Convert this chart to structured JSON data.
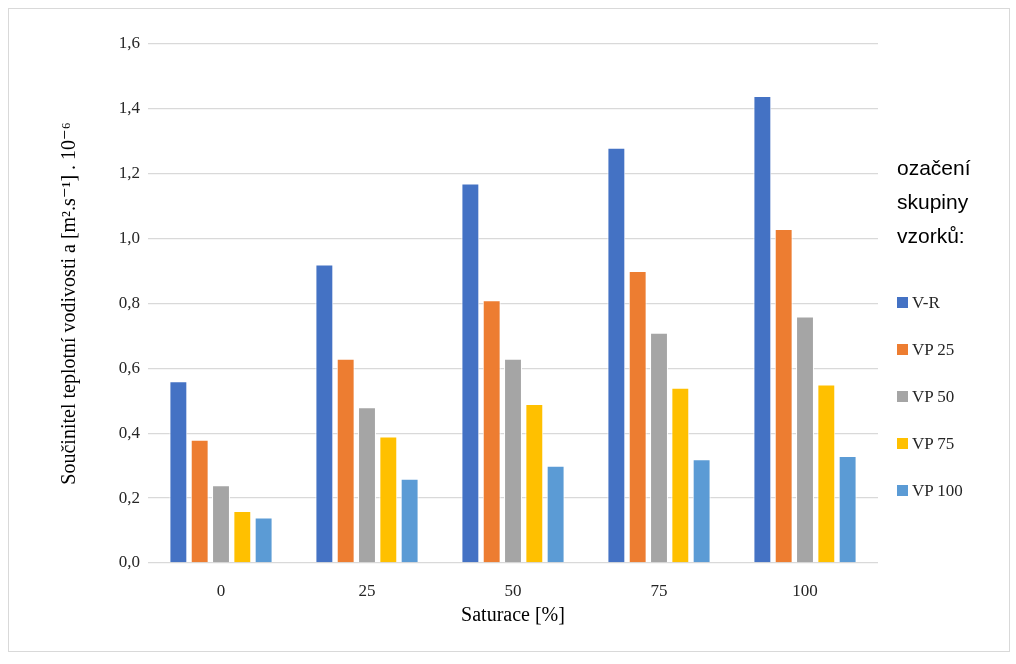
{
  "chart_data": {
    "type": "bar",
    "categories": [
      "0",
      "25",
      "50",
      "75",
      "100"
    ],
    "xlabel": "Saturace [%]",
    "ylabel": "Součinitel teplotní vodivosti a [m².s⁻¹] . 10⁻⁶",
    "legend_title": "ozačení skupiny vzorků:",
    "series": [
      {
        "name": "V-R",
        "color": "#4472c4",
        "values": [
          0.56,
          0.92,
          1.17,
          1.28,
          1.44
        ]
      },
      {
        "name": "VP 25",
        "color": "#ed7d31",
        "values": [
          0.38,
          0.63,
          0.81,
          0.9,
          1.03
        ]
      },
      {
        "name": "VP 50",
        "color": "#a5a5a5",
        "values": [
          0.24,
          0.48,
          0.63,
          0.71,
          0.76
        ]
      },
      {
        "name": "VP 75",
        "color": "#ffc000",
        "values": [
          0.16,
          0.39,
          0.49,
          0.54,
          0.55
        ]
      },
      {
        "name": "VP 100",
        "color": "#5b9bd5",
        "values": [
          0.14,
          0.26,
          0.3,
          0.32,
          0.33
        ]
      }
    ],
    "ylim": [
      0,
      1.6
    ],
    "yticks": [
      {
        "value": 0,
        "label": "0,0"
      },
      {
        "value": 0.2,
        "label": "0,2"
      },
      {
        "value": 0.4,
        "label": "0,4"
      },
      {
        "value": 0.6,
        "label": "0,6"
      },
      {
        "value": 0.8,
        "label": "0,8"
      },
      {
        "value": 1.0,
        "label": "1,0"
      },
      {
        "value": 1.2,
        "label": "1,2"
      },
      {
        "value": 1.4,
        "label": "1,4"
      },
      {
        "value": 1.6,
        "label": "1,6"
      }
    ],
    "grid": "y",
    "legend": "right"
  }
}
